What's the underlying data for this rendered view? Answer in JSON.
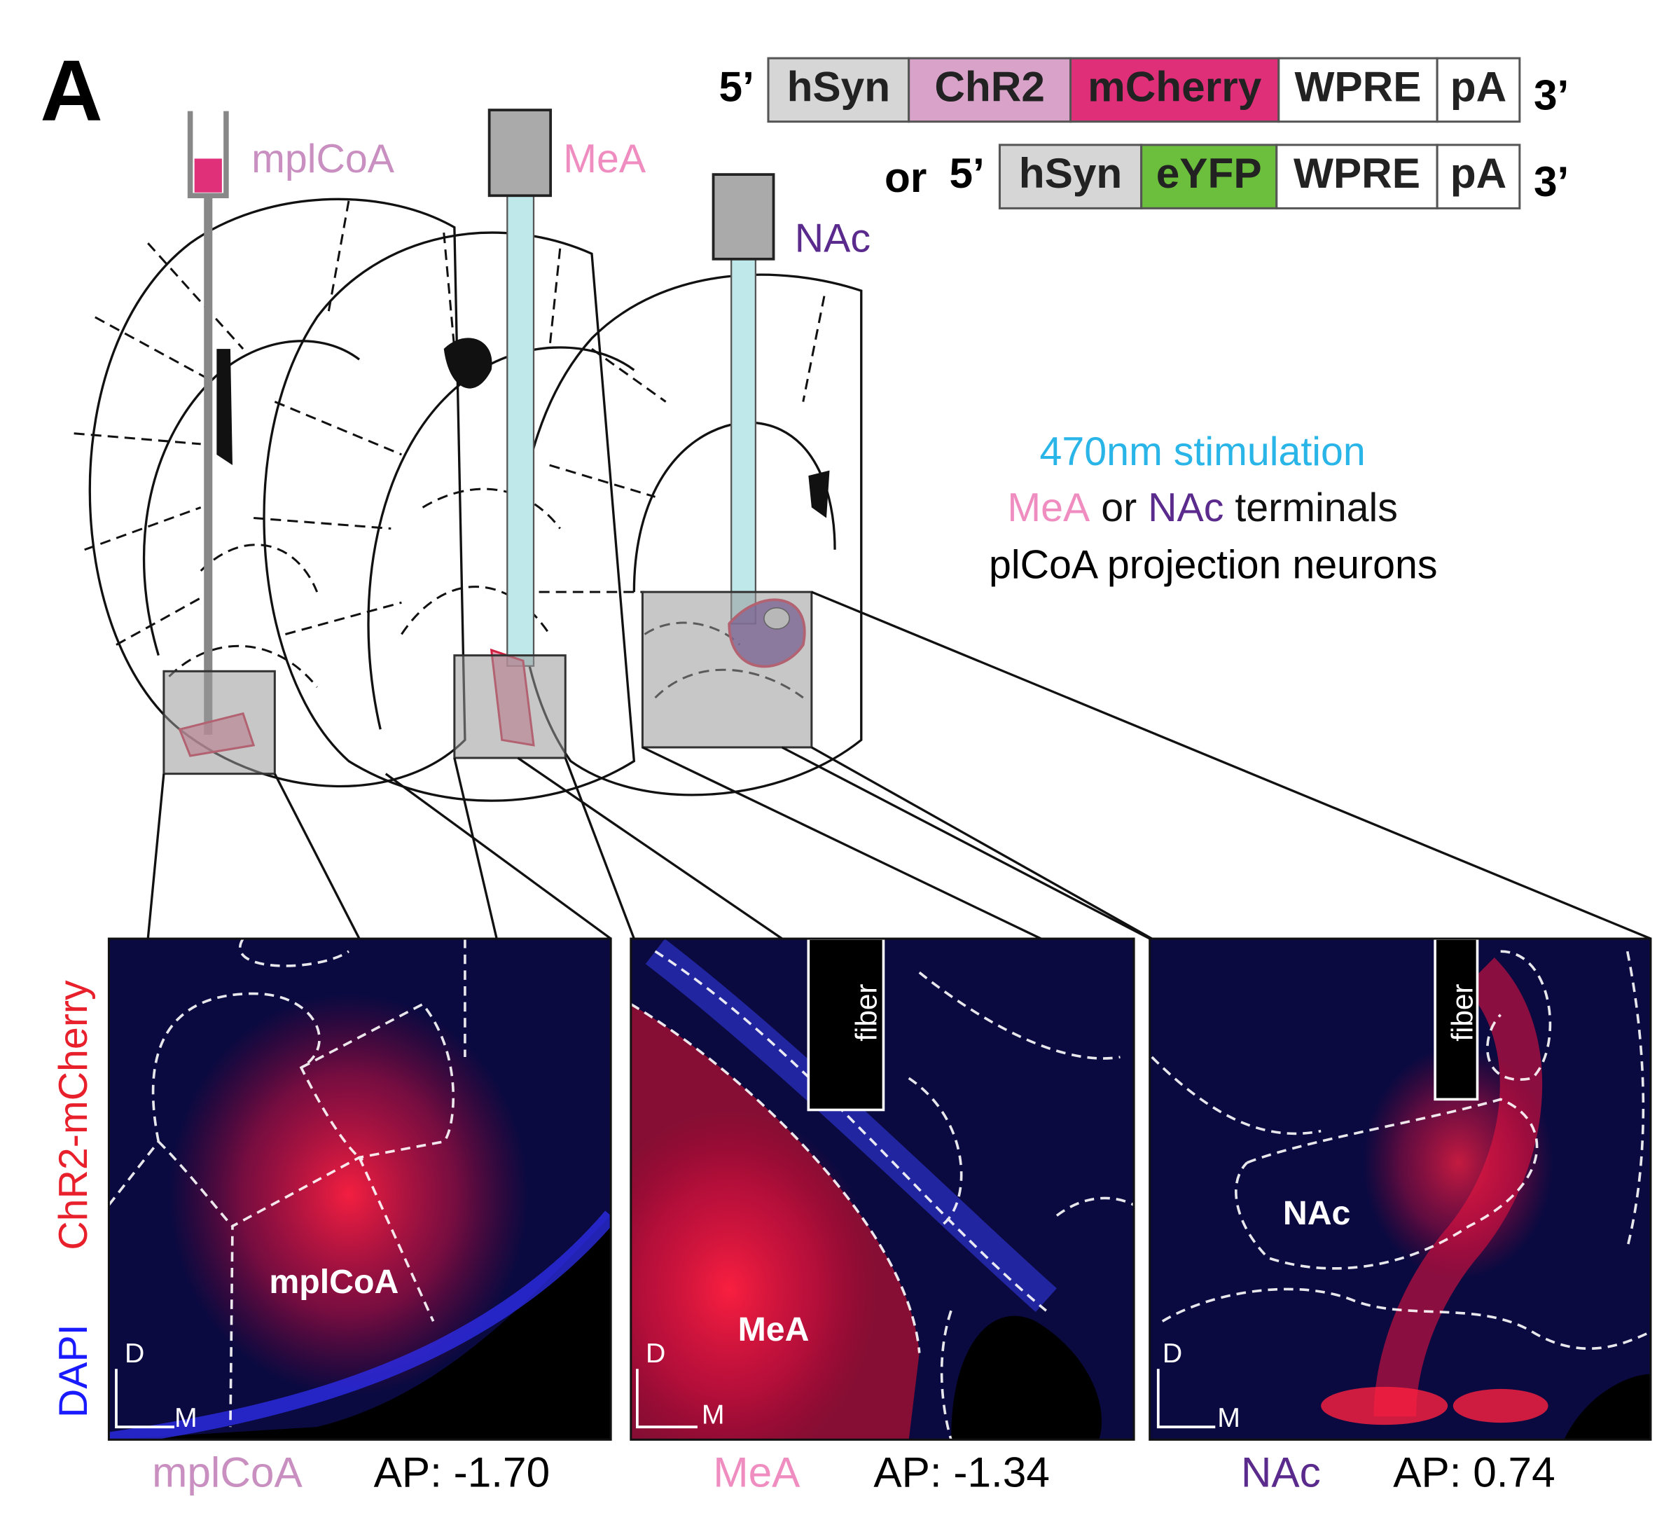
{
  "panel_label": "A",
  "constructs": [
    {
      "five": "5’",
      "three": "3’",
      "parts": [
        {
          "label": "hSyn",
          "color": "#d6d6d6"
        },
        {
          "label": "ChR2",
          "color": "#d9a2c9"
        },
        {
          "label": "mCherry",
          "color": "#df2f78"
        },
        {
          "label": "WPRE",
          "color": "#ffffff"
        },
        {
          "label": "pA",
          "color": "#ffffff"
        }
      ]
    },
    {
      "prefix": "or",
      "five": "5’",
      "three": "3’",
      "parts": [
        {
          "label": "hSyn",
          "color": "#d6d6d6"
        },
        {
          "label": "eYFP",
          "color": "#6cbf3c"
        },
        {
          "label": "WPRE",
          "color": "#ffffff"
        },
        {
          "label": "pA",
          "color": "#ffffff"
        }
      ]
    }
  ],
  "targets": [
    {
      "name": "mplCoA",
      "color": "#c88fc0"
    },
    {
      "name": "MeA",
      "color": "#f08dc0"
    },
    {
      "name": "NAc",
      "color": "#5a2a8c"
    }
  ],
  "stimulation": {
    "line1": "470nm stimulation",
    "line2": [
      "MeA",
      "or",
      "NAc",
      "terminals"
    ],
    "line3": "plCoA projection neurons"
  },
  "images": {
    "stain_labels": [
      "ChR2-mCherry",
      "DAPI"
    ],
    "panels": [
      {
        "region": "mplCoA",
        "orientation": [
          "D",
          "M"
        ],
        "caption": [
          "mplCoA",
          "AP: -1.70"
        ]
      },
      {
        "region": "MeA",
        "fiber": "fiber",
        "orientation": [
          "D",
          "M"
        ],
        "caption": [
          "MeA",
          "AP: -1.34"
        ]
      },
      {
        "region": "NAc",
        "fiber": "fiber",
        "orientation": [
          "D",
          "M"
        ],
        "caption": [
          "NAc",
          "AP: 0.74"
        ]
      }
    ]
  }
}
